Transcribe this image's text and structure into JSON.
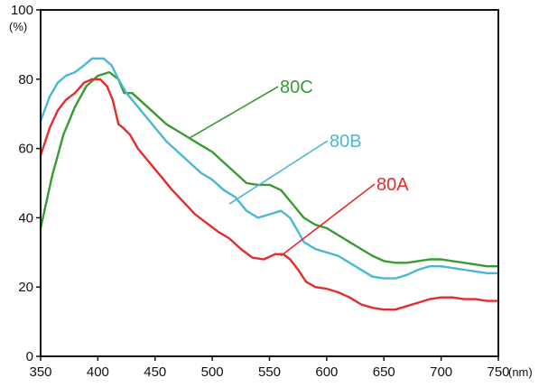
{
  "chart_data": {
    "type": "line",
    "xlim": [
      350,
      750
    ],
    "ylim": [
      0,
      100
    ],
    "x_unit": "(nm)",
    "y_unit": "(%)",
    "grid": false,
    "x_ticks": [
      350,
      400,
      450,
      500,
      550,
      600,
      650,
      700,
      750
    ],
    "y_ticks": [
      0,
      20,
      40,
      60,
      80,
      100
    ],
    "series": [
      {
        "name": "80C",
        "color": "#3a9a32",
        "label_anchor": [
          480,
          63
        ],
        "points": [
          [
            350,
            37
          ],
          [
            360,
            52
          ],
          [
            370,
            64
          ],
          [
            380,
            72
          ],
          [
            390,
            78
          ],
          [
            400,
            81
          ],
          [
            410,
            82
          ],
          [
            418,
            80
          ],
          [
            423,
            76
          ],
          [
            430,
            76
          ],
          [
            440,
            73
          ],
          [
            450,
            70
          ],
          [
            460,
            67
          ],
          [
            470,
            65
          ],
          [
            480,
            63
          ],
          [
            490,
            61
          ],
          [
            500,
            59
          ],
          [
            510,
            56
          ],
          [
            520,
            53
          ],
          [
            530,
            50
          ],
          [
            540,
            49.5
          ],
          [
            550,
            49.5
          ],
          [
            560,
            48
          ],
          [
            570,
            44
          ],
          [
            580,
            40
          ],
          [
            590,
            38
          ],
          [
            600,
            37
          ],
          [
            610,
            35
          ],
          [
            620,
            33
          ],
          [
            630,
            31
          ],
          [
            640,
            29
          ],
          [
            650,
            27.5
          ],
          [
            660,
            27
          ],
          [
            670,
            27
          ],
          [
            680,
            27.5
          ],
          [
            690,
            28
          ],
          [
            700,
            28
          ],
          [
            710,
            27.5
          ],
          [
            720,
            27
          ],
          [
            730,
            26.5
          ],
          [
            740,
            26
          ],
          [
            750,
            26
          ]
        ]
      },
      {
        "name": "80B",
        "color": "#4ab8d4",
        "label_anchor": [
          515,
          44
        ],
        "points": [
          [
            350,
            68
          ],
          [
            358,
            75
          ],
          [
            365,
            79
          ],
          [
            372,
            81
          ],
          [
            380,
            82
          ],
          [
            388,
            84
          ],
          [
            395,
            86
          ],
          [
            405,
            86
          ],
          [
            412,
            84
          ],
          [
            418,
            80
          ],
          [
            425,
            76
          ],
          [
            430,
            74
          ],
          [
            440,
            70
          ],
          [
            450,
            66
          ],
          [
            460,
            62
          ],
          [
            470,
            59
          ],
          [
            480,
            56
          ],
          [
            490,
            53
          ],
          [
            500,
            51
          ],
          [
            510,
            48
          ],
          [
            520,
            46
          ],
          [
            530,
            42
          ],
          [
            540,
            40
          ],
          [
            550,
            41
          ],
          [
            560,
            42
          ],
          [
            568,
            40
          ],
          [
            575,
            36
          ],
          [
            580,
            33
          ],
          [
            590,
            31
          ],
          [
            600,
            30
          ],
          [
            610,
            29
          ],
          [
            620,
            27
          ],
          [
            630,
            25
          ],
          [
            640,
            23
          ],
          [
            650,
            22.5
          ],
          [
            660,
            22.5
          ],
          [
            670,
            23.5
          ],
          [
            680,
            25
          ],
          [
            690,
            26
          ],
          [
            700,
            26
          ],
          [
            710,
            25.5
          ],
          [
            720,
            25
          ],
          [
            730,
            24.5
          ],
          [
            740,
            24
          ],
          [
            750,
            24
          ]
        ]
      },
      {
        "name": "80A",
        "color": "#e32d2d",
        "label_anchor": [
          560,
          29
        ],
        "points": [
          [
            350,
            58
          ],
          [
            358,
            66
          ],
          [
            365,
            71
          ],
          [
            372,
            74
          ],
          [
            380,
            76
          ],
          [
            388,
            79
          ],
          [
            395,
            80
          ],
          [
            402,
            80
          ],
          [
            408,
            78
          ],
          [
            413,
            74
          ],
          [
            418,
            67
          ],
          [
            422,
            66
          ],
          [
            428,
            64
          ],
          [
            435,
            60
          ],
          [
            445,
            56
          ],
          [
            455,
            52
          ],
          [
            465,
            48
          ],
          [
            475,
            44.5
          ],
          [
            485,
            41
          ],
          [
            495,
            38.5
          ],
          [
            505,
            36
          ],
          [
            515,
            34
          ],
          [
            525,
            31
          ],
          [
            535,
            28.5
          ],
          [
            545,
            28
          ],
          [
            555,
            29.5
          ],
          [
            562,
            29.5
          ],
          [
            568,
            28
          ],
          [
            575,
            25
          ],
          [
            582,
            21.5
          ],
          [
            590,
            20
          ],
          [
            600,
            19.5
          ],
          [
            610,
            18.5
          ],
          [
            620,
            17
          ],
          [
            630,
            15
          ],
          [
            640,
            14
          ],
          [
            650,
            13.5
          ],
          [
            660,
            13.5
          ],
          [
            670,
            14.5
          ],
          [
            680,
            15.5
          ],
          [
            690,
            16.5
          ],
          [
            700,
            17
          ],
          [
            710,
            17
          ],
          [
            720,
            16.5
          ],
          [
            730,
            16.5
          ],
          [
            740,
            16
          ],
          [
            750,
            16
          ]
        ]
      }
    ]
  }
}
